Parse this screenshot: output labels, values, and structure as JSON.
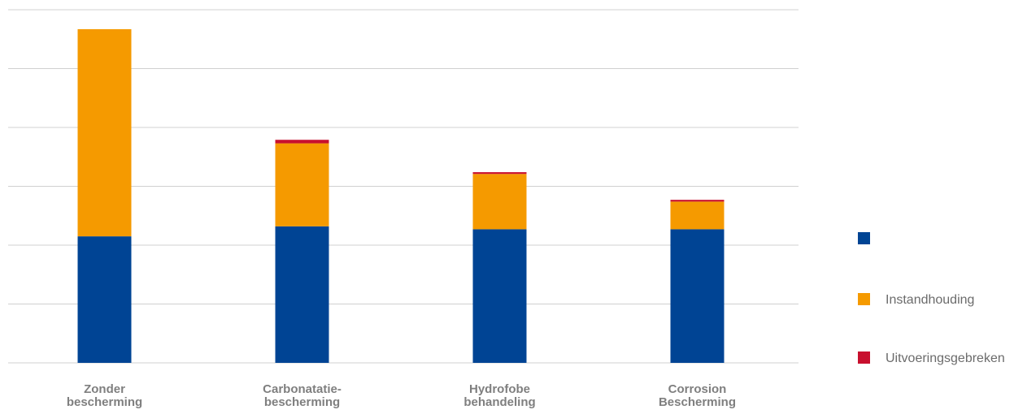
{
  "chart_data": {
    "type": "bar",
    "stacked": true,
    "categories": [
      [
        "Zonder",
        "bescherming"
      ],
      [
        "Carbonatatie-",
        "bescherming"
      ],
      [
        "Hydrofobe",
        "behandeling"
      ],
      [
        "Corrosion",
        "Bescherming"
      ]
    ],
    "series": [
      {
        "name": "",
        "color": "#004494",
        "values": [
          2.15,
          2.32,
          2.27,
          2.27
        ]
      },
      {
        "name": "Instandhouding",
        "color": "#f59a00",
        "values": [
          3.52,
          1.41,
          0.94,
          0.47
        ]
      },
      {
        "name": "Uitvoeringsgebreken",
        "color": "#c8102e",
        "values": [
          0.0,
          0.06,
          0.03,
          0.03
        ]
      }
    ],
    "ylim": [
      0,
      6
    ],
    "y_gridlines": [
      0,
      1,
      2,
      3,
      4,
      5,
      6
    ],
    "grid": true,
    "legend_position": "right",
    "colors": {
      "grid": "#d0d0d0",
      "category_text": "#7f7f7f",
      "legend_text": "#6b6b6b"
    }
  }
}
